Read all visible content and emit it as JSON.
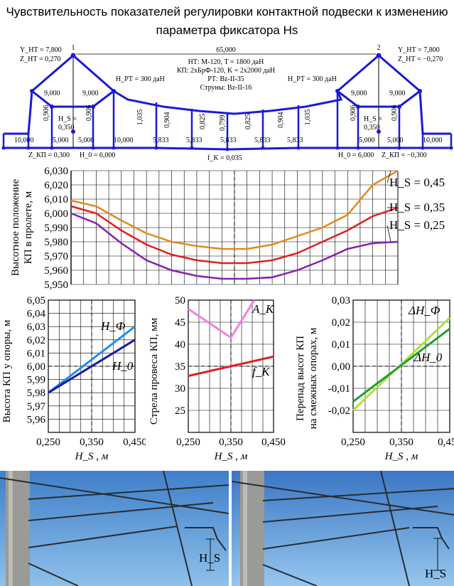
{
  "title": "Чувствительность показателей регулировки контактной подвески к изменению параметра фиксатора Hs",
  "diagram": {
    "support_left_num": "1",
    "support_right_num": "2",
    "span": "65,000",
    "y_nt_left": "Y_НТ = 7,800",
    "z_nt_left": "Z_НТ = 0,270",
    "y_nt_right": "Y_НТ = 7,800",
    "z_nt_right": "Z_НТ = −0,270",
    "info_lines": [
      "НТ: М-120, T = 1800 даН",
      "КП: 2хБрФ-120, K = 2х2000 даН",
      "РТ: Bz-II-35",
      "Струны: Bz-II-16"
    ],
    "hrt_left": "H_РТ = 300 даН",
    "hrt_right": "H_РТ = 300 даН",
    "dim_9000": "9,000",
    "dim_10000": "10,000",
    "dim_5000": "5,000",
    "dim_5833": "5,833",
    "hs_left": "H_S =",
    "hs_left_val": "0,350",
    "hs_right": "H_S =",
    "hs_right_val": "0,350",
    "dropper_lengths": [
      "0,906",
      "0,906",
      "1,035",
      "0,904",
      "0,825",
      "0,799",
      "0,825",
      "0,904",
      "1,035",
      "0,906",
      "0,906"
    ],
    "z_kp_left": "Z_КП = 0,300",
    "h0_left": "H_0 = 6,000",
    "fk": "f_K = 0,035",
    "h0_right": "H_0 = 6,000",
    "z_kp_right": "Z_КП = −0,300"
  },
  "chart_data": [
    {
      "type": "line",
      "ylabel": "Высотное положение КП в пролете, м",
      "ylim": [
        5.95,
        6.03
      ],
      "yticks": [
        "6,030",
        "6,020",
        "6,010",
        "6,000",
        "5,990",
        "5,980",
        "5,970",
        "5,960",
        "5,950"
      ],
      "x": [
        0,
        5,
        10,
        15,
        20,
        25,
        30,
        35,
        40,
        45,
        50,
        55,
        60,
        65
      ],
      "series": [
        {
          "name": "H_S = 0,45",
          "color": "#e08a1e",
          "values": [
            6.009,
            6.005,
            5.995,
            5.986,
            5.98,
            5.977,
            5.975,
            5.975,
            5.978,
            5.984,
            5.99,
            5.999,
            6.02,
            6.03
          ]
        },
        {
          "name": "H_S = 0,35",
          "color": "#e02020",
          "values": [
            6.005,
            6.0,
            5.988,
            5.978,
            5.971,
            5.967,
            5.965,
            5.965,
            5.967,
            5.972,
            5.98,
            5.988,
            5.998,
            6.004
          ]
        },
        {
          "name": "H_S = 0,25",
          "color": "#8a1fb0",
          "values": [
            6.0,
            5.993,
            5.979,
            5.967,
            5.96,
            5.956,
            5.954,
            5.954,
            5.955,
            5.96,
            5.967,
            5.975,
            5.979,
            5.98
          ]
        }
      ],
      "grid": true
    },
    {
      "type": "line",
      "ylabel": "Высота КП у опоры, м",
      "xlabel": "H_S , м",
      "xticks": [
        "0,250",
        "0,350",
        "0,450"
      ],
      "yticks": [
        "6,05",
        "6,04",
        "6,03",
        "6,02",
        "6,01",
        "6,00",
        "5,99",
        "5,98",
        "5,97",
        "5,96"
      ],
      "xlim": [
        0.25,
        0.45
      ],
      "ylim": [
        5.95,
        6.05
      ],
      "x": [
        0.25,
        0.45
      ],
      "series": [
        {
          "name": "H_Ф",
          "color": "#1f8fe8",
          "values": [
            5.98,
            6.03
          ]
        },
        {
          "name": "H_0",
          "color": "#1a1aa0",
          "values": [
            5.98,
            6.02
          ]
        }
      ],
      "grid": true
    },
    {
      "type": "line",
      "ylabel": "Стрела провеса КП, мм",
      "xlabel": "H_S , м",
      "xticks": [
        "0,250",
        "0,350",
        "0,450"
      ],
      "yticks": [
        "50",
        "45",
        "40",
        "35",
        "30",
        "25"
      ],
      "xlim": [
        0.25,
        0.45
      ],
      "ylim": [
        20,
        50
      ],
      "series": [
        {
          "name": "A_К",
          "color": "#f080e0",
          "x": [
            0.25,
            0.35,
            0.45
          ],
          "values": [
            48,
            41.5,
            57
          ]
        },
        {
          "name": "f_К",
          "color": "#e02020",
          "x": [
            0.25,
            0.45
          ],
          "values": [
            32.8,
            37.2
          ]
        }
      ],
      "grid": true
    },
    {
      "type": "line",
      "ylabel": "Перепад высот КП на смежных опорах, м",
      "xlabel": "H_S , м",
      "xticks": [
        "0,250",
        "0,350",
        "0,450"
      ],
      "yticks": [
        "0,03",
        "0,02",
        "0,01",
        "0,00",
        "-0,01",
        "-0,02"
      ],
      "xlim": [
        0.25,
        0.45
      ],
      "ylim": [
        -0.03,
        0.03
      ],
      "x": [
        0.25,
        0.45
      ],
      "series": [
        {
          "name": "ΔH_Ф",
          "color": "#b0e040",
          "values": [
            -0.02,
            0.022
          ]
        },
        {
          "name": "ΔH_0",
          "color": "#1fa030",
          "values": [
            -0.016,
            0.017
          ]
        }
      ],
      "grid": true
    }
  ],
  "photos": {
    "label_left": "H_S",
    "label_right": "H_S"
  }
}
